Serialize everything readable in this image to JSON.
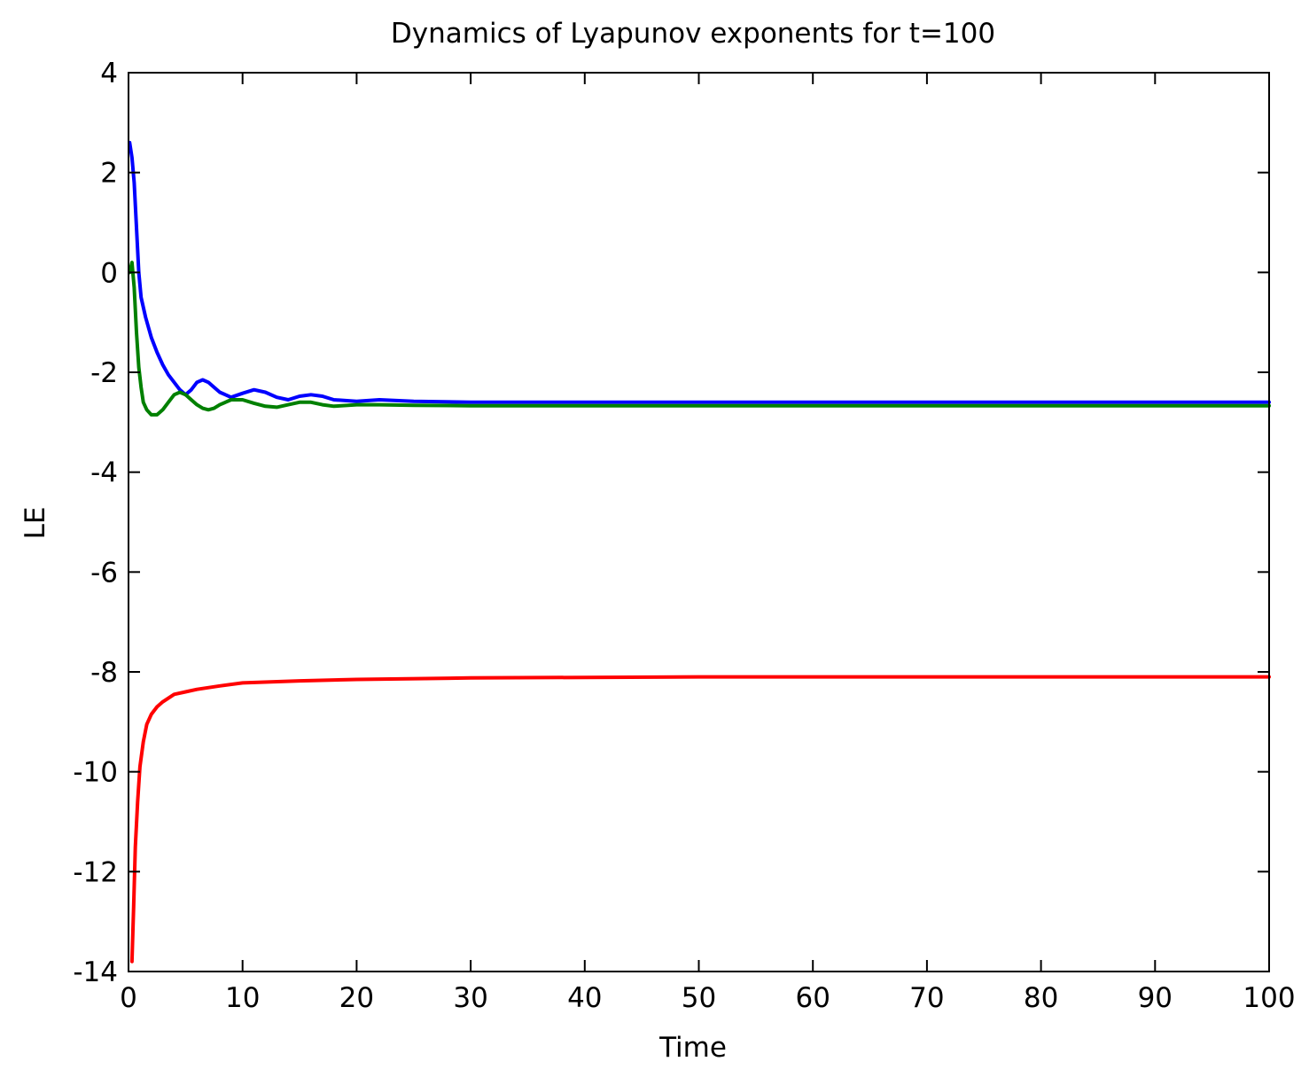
{
  "chart_data": {
    "type": "line",
    "title": "Dynamics of Lyapunov exponents for t=100",
    "xlabel": "Time",
    "ylabel": "LE",
    "xlim": [
      0,
      100
    ],
    "ylim": [
      -14,
      4
    ],
    "xticks": [
      0,
      10,
      20,
      30,
      40,
      50,
      60,
      70,
      80,
      90,
      100
    ],
    "yticks": [
      -14,
      -12,
      -10,
      -8,
      -6,
      -4,
      -2,
      0,
      2,
      4
    ],
    "grid": false,
    "legend": "none",
    "series": [
      {
        "color": "#0000ff",
        "x": [
          0.1,
          0.3,
          0.5,
          0.7,
          0.9,
          1.1,
          1.5,
          2,
          2.5,
          3,
          3.5,
          4,
          4.5,
          5,
          5.5,
          6,
          6.5,
          7,
          7.5,
          8,
          9,
          10,
          11,
          12,
          13,
          14,
          15,
          16,
          17,
          18,
          20,
          22,
          25,
          30,
          35,
          40,
          50,
          60,
          70,
          80,
          90,
          100
        ],
        "y": [
          2.6,
          2.3,
          1.8,
          0.9,
          0.0,
          -0.5,
          -0.9,
          -1.3,
          -1.6,
          -1.85,
          -2.05,
          -2.2,
          -2.35,
          -2.45,
          -2.35,
          -2.2,
          -2.15,
          -2.2,
          -2.3,
          -2.4,
          -2.5,
          -2.42,
          -2.35,
          -2.4,
          -2.5,
          -2.55,
          -2.48,
          -2.45,
          -2.48,
          -2.55,
          -2.58,
          -2.55,
          -2.58,
          -2.6,
          -2.6,
          -2.6,
          -2.6,
          -2.6,
          -2.6,
          -2.6,
          -2.6,
          -2.6
        ]
      },
      {
        "color": "#008000",
        "x": [
          0.1,
          0.3,
          0.5,
          0.7,
          0.9,
          1.1,
          1.3,
          1.6,
          2,
          2.5,
          3,
          3.5,
          4,
          4.5,
          5,
          5.5,
          6,
          6.5,
          7,
          7.5,
          8,
          9,
          10,
          11,
          12,
          13,
          14,
          15,
          16,
          17,
          18,
          20,
          22,
          25,
          30,
          35,
          40,
          50,
          60,
          70,
          80,
          90,
          100
        ],
        "y": [
          0.0,
          0.2,
          -0.3,
          -1.2,
          -1.9,
          -2.3,
          -2.6,
          -2.75,
          -2.85,
          -2.85,
          -2.75,
          -2.6,
          -2.45,
          -2.4,
          -2.45,
          -2.55,
          -2.65,
          -2.72,
          -2.75,
          -2.72,
          -2.65,
          -2.55,
          -2.55,
          -2.62,
          -2.68,
          -2.7,
          -2.65,
          -2.6,
          -2.6,
          -2.65,
          -2.68,
          -2.65,
          -2.65,
          -2.66,
          -2.67,
          -2.67,
          -2.67,
          -2.67,
          -2.67,
          -2.67,
          -2.67,
          -2.67,
          -2.67
        ]
      },
      {
        "color": "#ff0000",
        "x": [
          0.3,
          0.45,
          0.6,
          0.8,
          1,
          1.3,
          1.6,
          2,
          2.5,
          3,
          4,
          5,
          6,
          8,
          10,
          15,
          20,
          30,
          40,
          50,
          60,
          70,
          80,
          90,
          100
        ],
        "y": [
          -13.8,
          -12.7,
          -11.5,
          -10.6,
          -9.9,
          -9.4,
          -9.05,
          -8.85,
          -8.7,
          -8.6,
          -8.45,
          -8.4,
          -8.35,
          -8.28,
          -8.22,
          -8.18,
          -8.15,
          -8.12,
          -8.11,
          -8.1,
          -8.1,
          -8.1,
          -8.1,
          -8.1,
          -8.1
        ]
      }
    ]
  }
}
